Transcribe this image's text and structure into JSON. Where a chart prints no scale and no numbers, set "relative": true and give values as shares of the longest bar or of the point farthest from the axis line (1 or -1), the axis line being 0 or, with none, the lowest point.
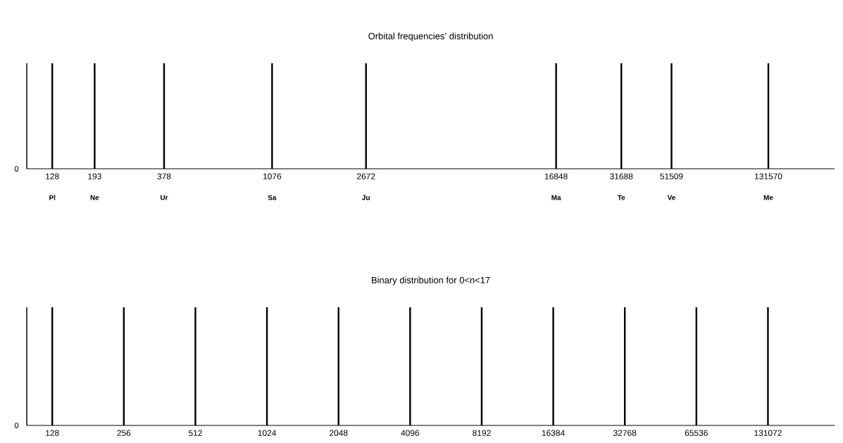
{
  "chart_data": [
    {
      "type": "bar",
      "title": "Orbital frequencies’ distribution",
      "relative": true,
      "log": "x",
      "xlim": [
        100,
        250000
      ],
      "x": [
        128,
        193,
        378,
        1076,
        2672,
        16848,
        31688,
        51509,
        131570
      ],
      "values": [
        1,
        1,
        1,
        1,
        1,
        1,
        1,
        1,
        1
      ],
      "xticks": [
        {
          "value": 128,
          "label": "128"
        },
        {
          "value": 193,
          "label": "193"
        },
        {
          "value": 378,
          "label": "378"
        },
        {
          "value": 1076,
          "label": "1076"
        },
        {
          "value": 2672,
          "label": "2672"
        },
        {
          "value": 16848,
          "label": "16848"
        },
        {
          "value": 31688,
          "label": "31688"
        },
        {
          "value": 51509,
          "label": "51509"
        },
        {
          "value": 131570,
          "label": "131570"
        }
      ],
      "annotations": [
        "0",
        "Pl",
        "Ne",
        "Ur",
        "Sa",
        "Ju",
        "Ma",
        "Te",
        "Ve",
        "Me"
      ]
    },
    {
      "type": "bar",
      "title": "Binary distribution for 0<n<17",
      "relative": true,
      "log": "x",
      "xlim": [
        100,
        250000
      ],
      "x": [
        128,
        256,
        512,
        1024,
        2048,
        4096,
        8192,
        16384,
        32768,
        65536,
        131072
      ],
      "values": [
        1,
        1,
        1,
        1,
        1,
        1,
        1,
        1,
        1,
        1,
        1
      ],
      "xticks": [
        {
          "value": 128,
          "label": "128"
        },
        {
          "value": 256,
          "label": "256"
        },
        {
          "value": 512,
          "label": "512"
        },
        {
          "value": 1024,
          "label": "1024"
        },
        {
          "value": 2048,
          "label": "2048"
        },
        {
          "value": 4096,
          "label": "4096"
        },
        {
          "value": 8192,
          "label": "8192"
        },
        {
          "value": 16384,
          "label": "16384"
        },
        {
          "value": 32768,
          "label": "32768"
        },
        {
          "value": 65536,
          "label": "65536"
        },
        {
          "value": 131072,
          "label": "131072"
        }
      ],
      "annotations": [
        "0"
      ]
    }
  ]
}
